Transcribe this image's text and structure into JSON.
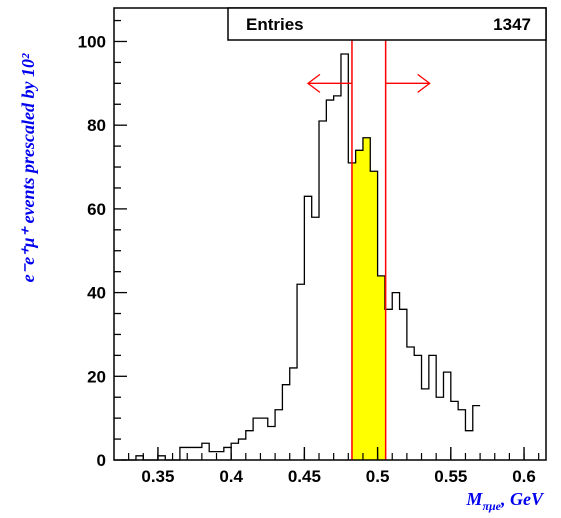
{
  "chart_data": {
    "type": "histogram",
    "xlim": [
      0.32,
      0.615
    ],
    "ylim": [
      0,
      108
    ],
    "bin_width": 0.005,
    "bins_start": 0.325,
    "values": [
      0,
      0,
      1,
      0,
      0,
      1,
      0,
      0,
      3,
      3,
      3,
      4,
      2,
      2,
      3,
      4,
      5,
      7,
      10,
      10,
      8,
      12,
      18,
      22,
      42,
      63,
      58,
      81,
      86,
      87,
      97,
      71,
      74,
      77,
      69,
      44,
      36,
      40,
      36,
      27,
      25,
      17,
      25,
      15,
      21,
      14,
      12,
      7,
      13
    ],
    "highlight_range": [
      0.4825,
      0.5055
    ],
    "highlight_color": "#ffff00",
    "line_color": "#ff0000",
    "x_ticks": [
      {
        "value": 0.35,
        "label": "0.35"
      },
      {
        "value": 0.4,
        "label": "0.4"
      },
      {
        "value": 0.45,
        "label": "0.45"
      },
      {
        "value": 0.5,
        "label": "0.5"
      },
      {
        "value": 0.55,
        "label": "0.55"
      },
      {
        "value": 0.6,
        "label": "0.6"
      }
    ],
    "y_ticks": [
      {
        "value": 0,
        "label": "0"
      },
      {
        "value": 20,
        "label": "20"
      },
      {
        "value": 40,
        "label": "40"
      },
      {
        "value": 60,
        "label": "60"
      },
      {
        "value": 80,
        "label": "80"
      },
      {
        "value": 100,
        "label": "100"
      }
    ],
    "arrow_y": 90,
    "xlabel": {
      "main": "M",
      "sub": "πμe",
      "unit": ", GeV"
    },
    "ylabel": "e⁻e⁺μ⁺ events prescaled by 10²",
    "stats": {
      "label": "Entries",
      "value": "1347"
    }
  }
}
